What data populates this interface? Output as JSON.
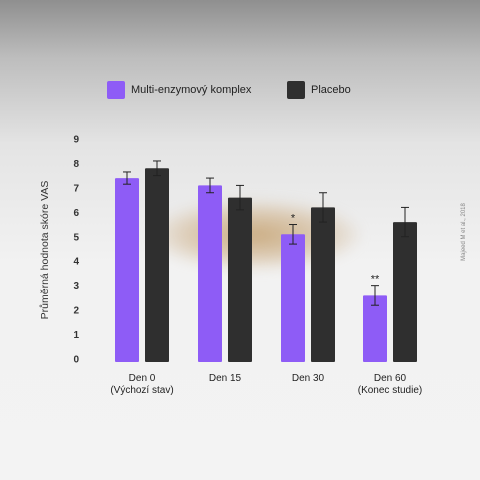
{
  "chart_data": {
    "type": "bar",
    "categories": [
      "Den 0\n(Výchozí stav)",
      "Den 15",
      "Den 30",
      "Den 60\n(Konec studie)"
    ],
    "series": [
      {
        "name": "Multi-enzymový komplex",
        "color": "#8e5cf6",
        "values": [
          7.4,
          7.1,
          5.1,
          2.6
        ],
        "errors": [
          0.25,
          0.3,
          0.4,
          0.4
        ]
      },
      {
        "name": "Placebo",
        "color": "#2f2f2f",
        "values": [
          7.8,
          6.6,
          6.2,
          5.6
        ],
        "errors": [
          0.3,
          0.5,
          0.6,
          0.6
        ]
      }
    ],
    "significance": [
      "",
      "",
      "*",
      "**"
    ],
    "ylabel": "Průměrná hodnota skóre VAS",
    "ylim": [
      0,
      9
    ],
    "yticks": [
      0,
      1,
      2,
      3,
      4,
      5,
      6,
      7,
      8,
      9
    ],
    "legend_position": "top",
    "grid": false
  },
  "source_note": "Majeed M et al., 2018"
}
